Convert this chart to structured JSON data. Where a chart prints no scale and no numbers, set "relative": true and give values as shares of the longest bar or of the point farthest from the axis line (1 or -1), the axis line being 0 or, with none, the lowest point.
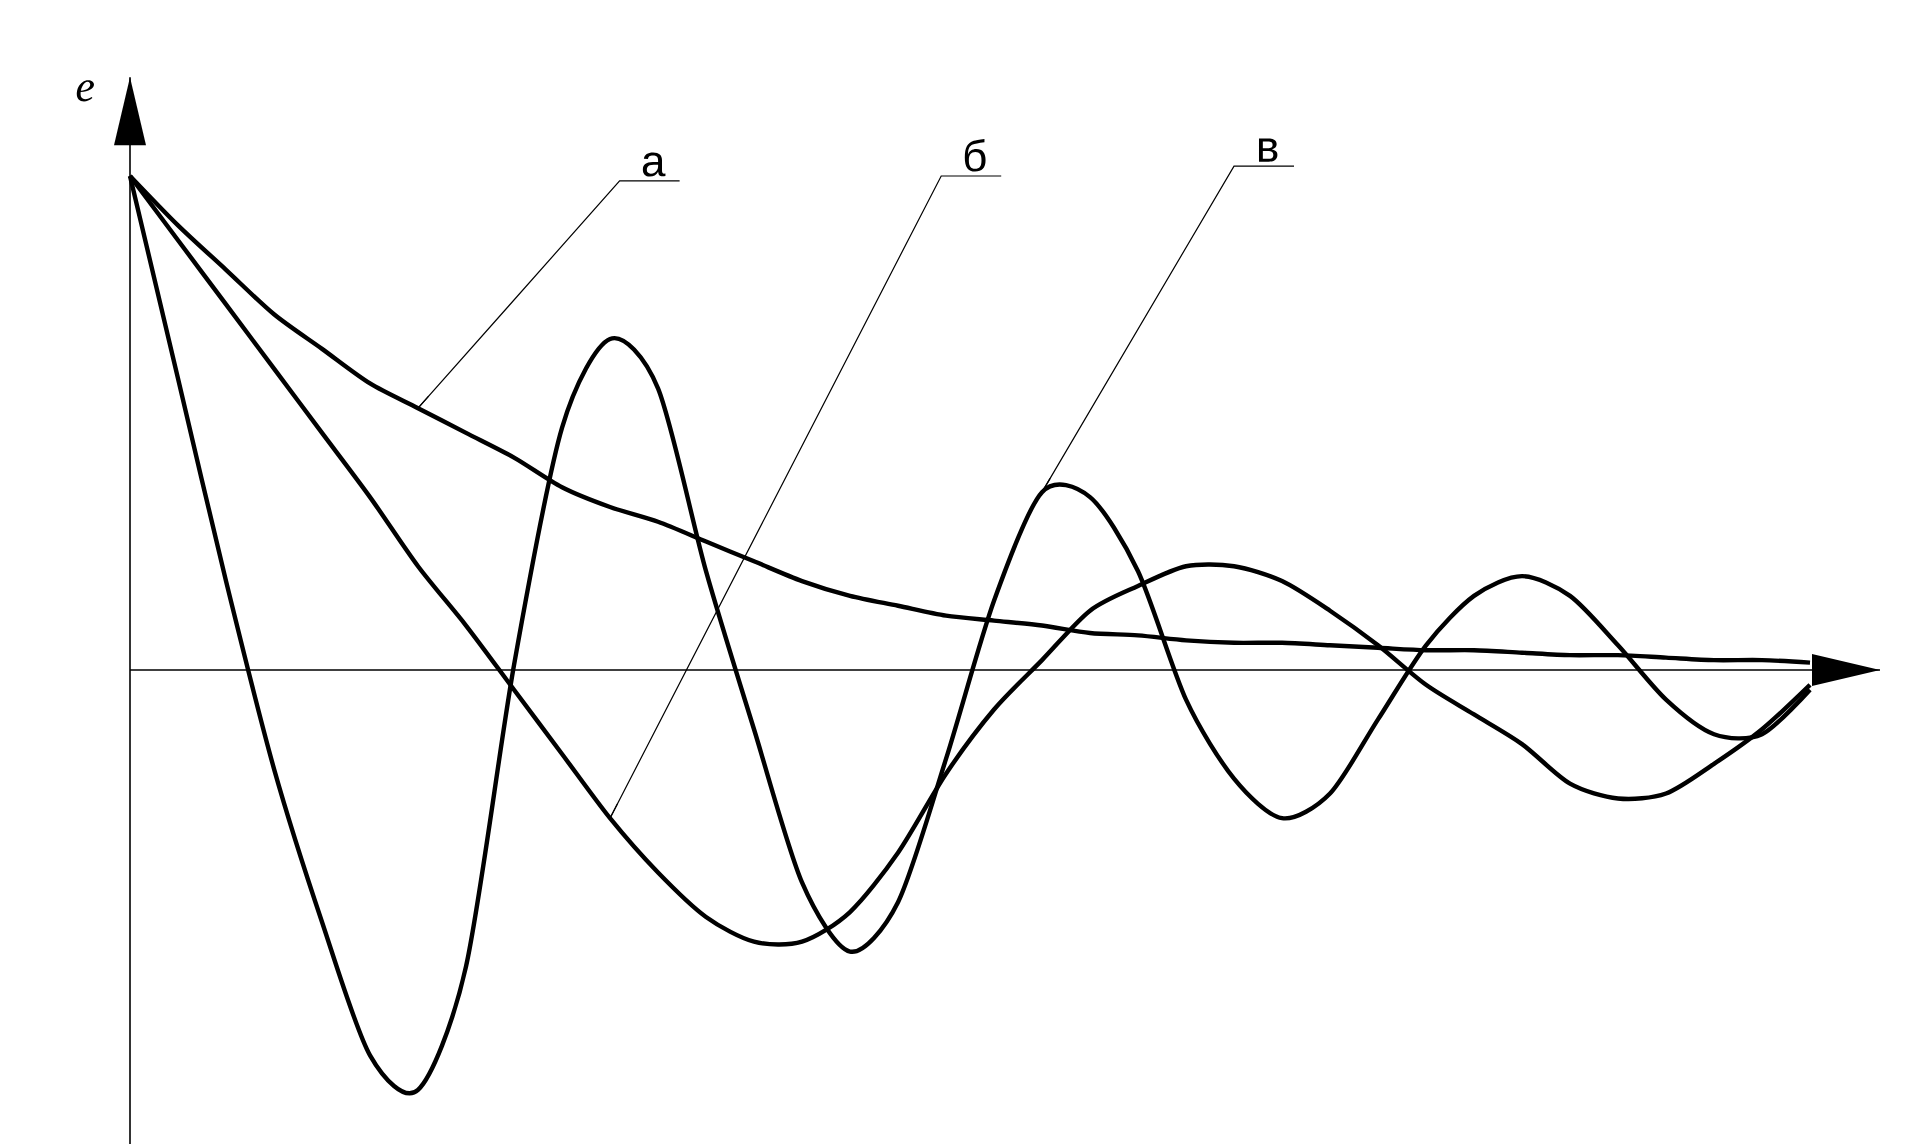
{
  "chart_data": {
    "type": "line",
    "ylabel": "e",
    "relative": true,
    "annotations": [
      "а",
      "б",
      "в"
    ],
    "categories": [
      null,
      null,
      null,
      null,
      null,
      null,
      null,
      null,
      null,
      null,
      null,
      null,
      null,
      null,
      null,
      null,
      null,
      null,
      null,
      null,
      null,
      null,
      null,
      null,
      null,
      null,
      null,
      null,
      null,
      null,
      null,
      null,
      null,
      null,
      null,
      null
    ],
    "series": [
      {
        "color": "#000000",
        "values": [
          1.0,
          0.9,
          0.81,
          0.72,
          0.65,
          0.58,
          0.53,
          0.48,
          0.43,
          0.37,
          0.33,
          0.3,
          0.26,
          0.22,
          0.18,
          0.15,
          0.13,
          0.11,
          0.1,
          0.09,
          0.075,
          0.07,
          0.06,
          0.055,
          0.055,
          0.05,
          0.045,
          0.04,
          0.04,
          0.035,
          0.03,
          0.03,
          0.025,
          0.02,
          0.02,
          0.015
        ]
      },
      {
        "color": "#000000",
        "values": [
          1.0,
          0.87,
          0.74,
          0.61,
          0.48,
          0.35,
          0.21,
          0.09,
          -0.04,
          -0.17,
          -0.3,
          -0.41,
          -0.5,
          -0.55,
          -0.55,
          -0.49,
          -0.37,
          -0.21,
          -0.08,
          0.02,
          0.12,
          0.17,
          0.21,
          0.21,
          0.18,
          0.12,
          0.05,
          -0.03,
          -0.09,
          -0.15,
          -0.23,
          -0.26,
          -0.25,
          -0.19,
          -0.12,
          -0.03
        ]
      },
      {
        "color": "#000000",
        "values": [
          1.0,
          0.59,
          0.18,
          -0.2,
          -0.51,
          -0.78,
          -0.85,
          -0.6,
          0.01,
          0.49,
          0.67,
          0.57,
          0.2,
          -0.12,
          -0.43,
          -0.57,
          -0.47,
          -0.18,
          0.14,
          0.36,
          0.35,
          0.2,
          -0.06,
          -0.22,
          -0.3,
          -0.25,
          -0.1,
          0.05,
          0.15,
          0.19,
          0.15,
          0.05,
          -0.06,
          -0.13,
          -0.13,
          -0.04
        ]
      }
    ]
  }
}
